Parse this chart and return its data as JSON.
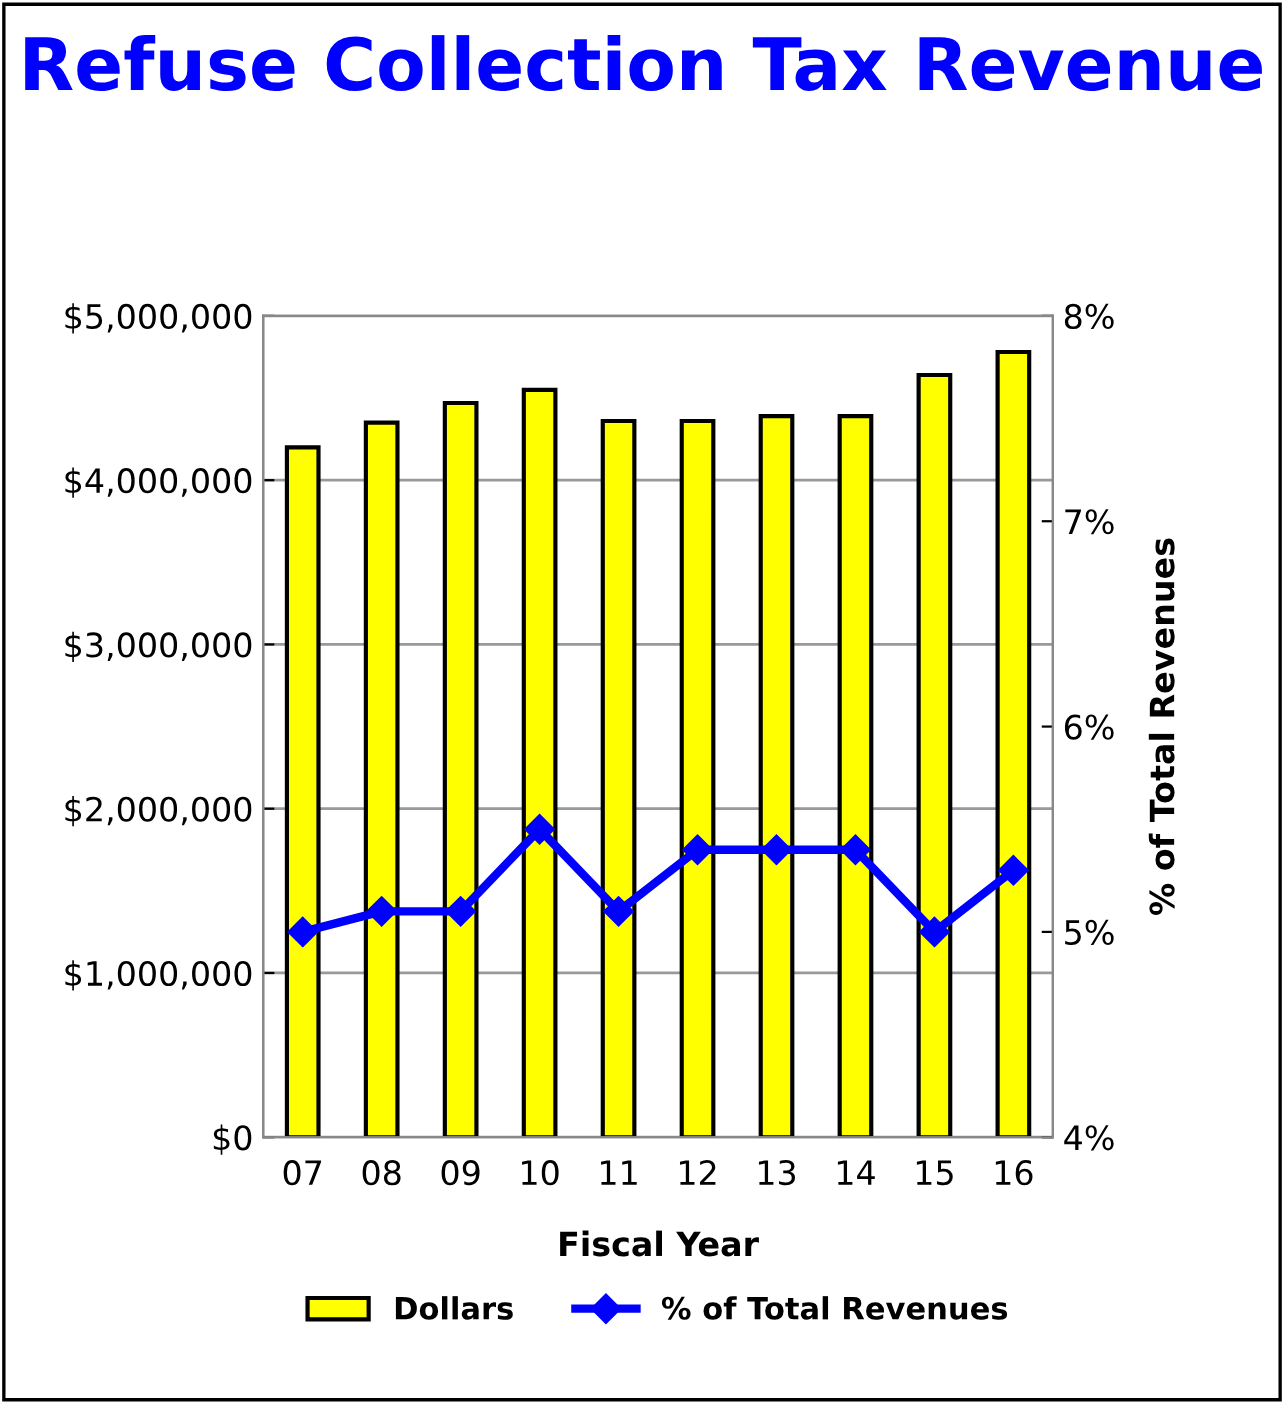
{
  "chart_data": {
    "type": "bar",
    "title": "Refuse Collection Tax Revenue",
    "xlabel": "Fiscal Year",
    "y2label": "% of Total Revenues",
    "categories": [
      "07",
      "08",
      "09",
      "10",
      "11",
      "12",
      "13",
      "14",
      "15",
      "16"
    ],
    "series": [
      {
        "name": "Dollars",
        "color": "#ffff00",
        "values": [
          4200000,
          4350000,
          4470000,
          4550000,
          4360000,
          4360000,
          4390000,
          4390000,
          4640000,
          4780000
        ]
      },
      {
        "name": "% of Total Revenues",
        "type": "line",
        "axis": "y2",
        "color": "#0000ff",
        "marker": "diamond",
        "values": [
          5.0,
          5.1,
          5.1,
          5.5,
          5.1,
          5.4,
          5.4,
          5.4,
          5.0,
          5.3
        ]
      }
    ],
    "ylim": [
      0,
      5000000
    ],
    "yticks": [
      {
        "value": 0,
        "label": "$0"
      },
      {
        "value": 1000000,
        "label": "$1,000,000"
      },
      {
        "value": 2000000,
        "label": "$2,000,000"
      },
      {
        "value": 3000000,
        "label": "$3,000,000"
      },
      {
        "value": 4000000,
        "label": "$4,000,000"
      },
      {
        "value": 5000000,
        "label": "$5,000,000"
      }
    ],
    "y2lim": [
      4,
      8
    ],
    "y2ticks": [
      {
        "value": 4,
        "label": "4%"
      },
      {
        "value": 5,
        "label": "5%"
      },
      {
        "value": 6,
        "label": "6%"
      },
      {
        "value": 7,
        "label": "7%"
      },
      {
        "value": 8,
        "label": "8%"
      }
    ],
    "grid": "y",
    "legend": "bottom"
  }
}
